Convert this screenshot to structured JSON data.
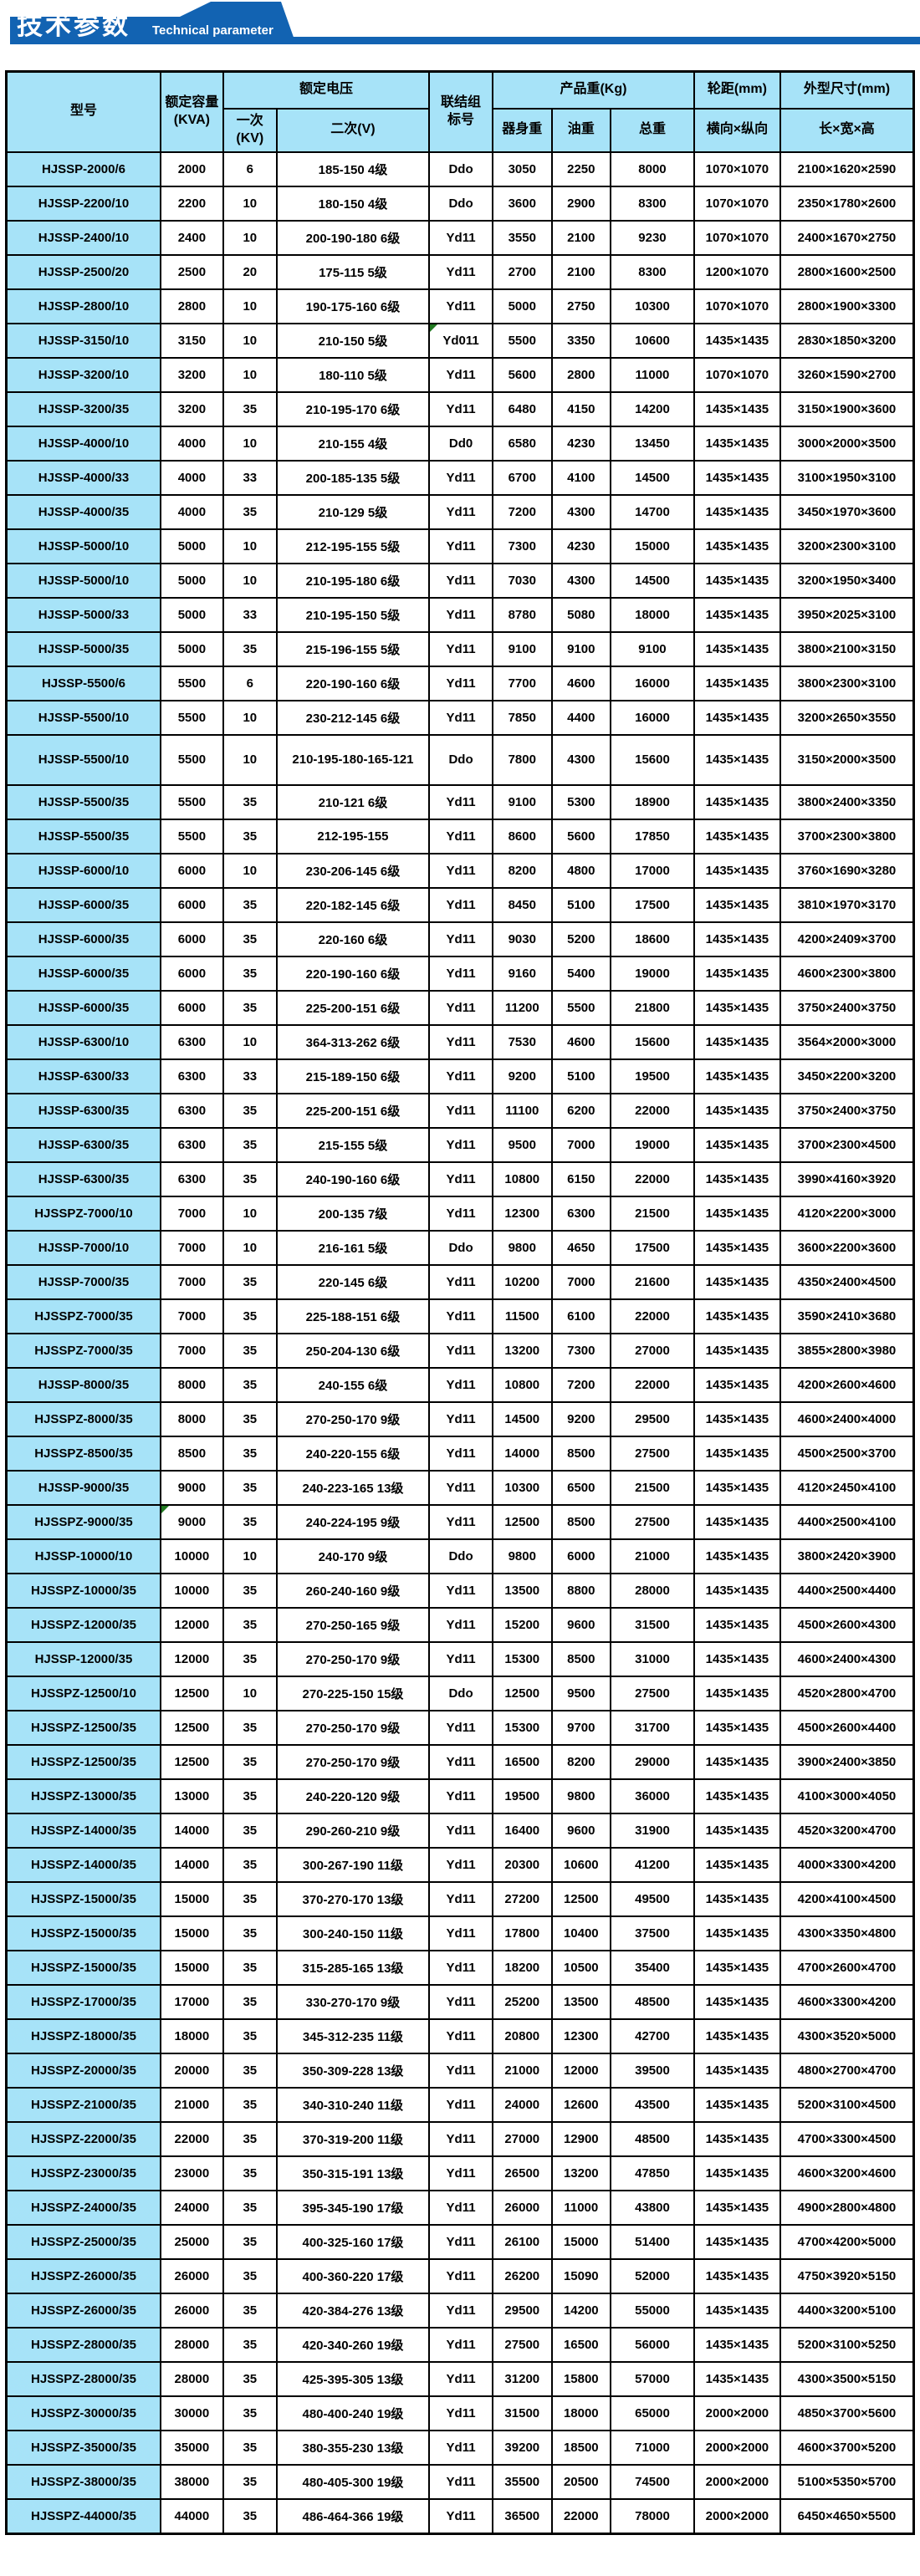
{
  "banner": {
    "title_zh": "技术参数",
    "title_en": "Technical parameter"
  },
  "colors": {
    "banner_blue": "#1263b2",
    "cell_blue": "#a7e3f8",
    "border_black": "#000000",
    "marker_green": "#217a21",
    "text_white": "#ffffff",
    "text_black": "#000000"
  },
  "table": {
    "headers": {
      "model": "型号",
      "capacity": "额定容量\n(KVA)",
      "rated_voltage": "额定电压",
      "primary": "一次\n(KV)",
      "secondary": "二次(V)",
      "vector_group": "联结组\n标号",
      "product_weight": "产品重(Kg)",
      "body_weight": "器身重",
      "oil_weight": "油重",
      "total_weight": "总重",
      "wheel_track": "轮距(mm)",
      "transverse_longitudinal": "横向×纵向",
      "dimensions": "外型尺寸(mm)",
      "length_width_height": "长×宽×高"
    },
    "tall_rows": [
      17
    ],
    "green_marker_cells": [
      {
        "row": 5,
        "col": 4
      },
      {
        "row": 39,
        "col": 1
      }
    ],
    "rows": [
      [
        "HJSSP-2000/6",
        "2000",
        "6",
        "185-150 4级",
        "Ddo",
        "3050",
        "2250",
        "8000",
        "1070×1070",
        "2100×1620×2590"
      ],
      [
        "HJSSP-2200/10",
        "2200",
        "10",
        "180-150 4级",
        "Ddo",
        "3600",
        "2900",
        "8300",
        "1070×1070",
        "2350×1780×2600"
      ],
      [
        "HJSSP-2400/10",
        "2400",
        "10",
        "200-190-180 6级",
        "Yd11",
        "3550",
        "2100",
        "9230",
        "1070×1070",
        "2400×1670×2750"
      ],
      [
        "HJSSP-2500/20",
        "2500",
        "20",
        "175-115 5级",
        "Yd11",
        "2700",
        "2100",
        "8300",
        "1200×1070",
        "2800×1600×2500"
      ],
      [
        "HJSSP-2800/10",
        "2800",
        "10",
        "190-175-160 6级",
        "Yd11",
        "5000",
        "2750",
        "10300",
        "1070×1070",
        "2800×1900×3300"
      ],
      [
        "HJSSP-3150/10",
        "3150",
        "10",
        "210-150 5级",
        "Yd011",
        "5500",
        "3350",
        "10600",
        "1435×1435",
        "2830×1850×3200"
      ],
      [
        "HJSSP-3200/10",
        "3200",
        "10",
        "180-110 5级",
        "Yd11",
        "5600",
        "2800",
        "11000",
        "1070×1070",
        "3260×1590×2700"
      ],
      [
        "HJSSP-3200/35",
        "3200",
        "35",
        "210-195-170 6级",
        "Yd11",
        "6480",
        "4150",
        "14200",
        "1435×1435",
        "3150×1900×3600"
      ],
      [
        "HJSSP-4000/10",
        "4000",
        "10",
        "210-155 4级",
        "Dd0",
        "6580",
        "4230",
        "13450",
        "1435×1435",
        "3000×2000×3500"
      ],
      [
        "HJSSP-4000/33",
        "4000",
        "33",
        "200-185-135 5级",
        "Yd11",
        "6700",
        "4100",
        "14500",
        "1435×1435",
        "3100×1950×3100"
      ],
      [
        "HJSSP-4000/35",
        "4000",
        "35",
        "210-129 5级",
        "Yd11",
        "7200",
        "4300",
        "14700",
        "1435×1435",
        "3450×1970×3600"
      ],
      [
        "HJSSP-5000/10",
        "5000",
        "10",
        "212-195-155 5级",
        "Yd11",
        "7300",
        "4230",
        "15000",
        "1435×1435",
        "3200×2300×3100"
      ],
      [
        "HJSSP-5000/10",
        "5000",
        "10",
        "210-195-180 6级",
        "Yd11",
        "7030",
        "4300",
        "14500",
        "1435×1435",
        "3200×1950×3400"
      ],
      [
        "HJSSP-5000/33",
        "5000",
        "33",
        "210-195-150 5级",
        "Yd11",
        "8780",
        "5080",
        "18000",
        "1435×1435",
        "3950×2025×3100"
      ],
      [
        "HJSSP-5000/35",
        "5000",
        "35",
        "215-196-155 5级",
        "Yd11",
        "9100",
        "9100",
        "9100",
        "1435×1435",
        "3800×2100×3150"
      ],
      [
        "HJSSP-5500/6",
        "5500",
        "6",
        "220-190-160 6级",
        "Yd11",
        "7700",
        "4600",
        "16000",
        "1435×1435",
        "3800×2300×3100"
      ],
      [
        "HJSSP-5500/10",
        "5500",
        "10",
        "230-212-145 6级",
        "Yd11",
        "7850",
        "4400",
        "16000",
        "1435×1435",
        "3200×2650×3550"
      ],
      [
        "HJSSP-5500/10",
        "5500",
        "10",
        "210-195-180-165-121",
        "Ddo",
        "7800",
        "4300",
        "15600",
        "1435×1435",
        "3150×2000×3500"
      ],
      [
        "HJSSP-5500/35",
        "5500",
        "35",
        "210-121 6级",
        "Yd11",
        "9100",
        "5300",
        "18900",
        "1435×1435",
        "3800×2400×3350"
      ],
      [
        "HJSSP-5500/35",
        "5500",
        "35",
        "212-195-155",
        "Yd11",
        "8600",
        "5600",
        "17850",
        "1435×1435",
        "3700×2300×3800"
      ],
      [
        "HJSSP-6000/10",
        "6000",
        "10",
        "230-206-145 6级",
        "Yd11",
        "8200",
        "4800",
        "17000",
        "1435×1435",
        "3760×1690×3280"
      ],
      [
        "HJSSP-6000/35",
        "6000",
        "35",
        "220-182-145 6级",
        "Yd11",
        "8450",
        "5100",
        "17500",
        "1435×1435",
        "3810×1970×3170"
      ],
      [
        "HJSSP-6000/35",
        "6000",
        "35",
        "220-160 6级",
        "Yd11",
        "9030",
        "5200",
        "18600",
        "1435×1435",
        "4200×2409×3700"
      ],
      [
        "HJSSP-6000/35",
        "6000",
        "35",
        "220-190-160 6级",
        "Yd11",
        "9160",
        "5400",
        "19000",
        "1435×1435",
        "4600×2300×3800"
      ],
      [
        "HJSSP-6000/35",
        "6000",
        "35",
        "225-200-151 6级",
        "Yd11",
        "11200",
        "5500",
        "21800",
        "1435×1435",
        "3750×2400×3750"
      ],
      [
        "HJSSP-6300/10",
        "6300",
        "10",
        "364-313-262 6级",
        "Yd11",
        "7530",
        "4600",
        "15600",
        "1435×1435",
        "3564×2000×3000"
      ],
      [
        "HJSSP-6300/33",
        "6300",
        "33",
        "215-189-150 6级",
        "Yd11",
        "9200",
        "5100",
        "19500",
        "1435×1435",
        "3450×2200×3200"
      ],
      [
        "HJSSP-6300/35",
        "6300",
        "35",
        "225-200-151 6级",
        "Yd11",
        "11100",
        "6200",
        "22000",
        "1435×1435",
        "3750×2400×3750"
      ],
      [
        "HJSSP-6300/35",
        "6300",
        "35",
        "215-155 5级",
        "Yd11",
        "9500",
        "7000",
        "19000",
        "1435×1435",
        "3700×2300×4500"
      ],
      [
        "HJSSP-6300/35",
        "6300",
        "35",
        "240-190-160 6级",
        "Yd11",
        "10800",
        "6150",
        "22000",
        "1435×1435",
        "3990×4160×3920"
      ],
      [
        "HJSSPZ-7000/10",
        "7000",
        "10",
        "200-135 7级",
        "Yd11",
        "12300",
        "6300",
        "21500",
        "1435×1435",
        "4120×2200×3000"
      ],
      [
        "HJSSP-7000/10",
        "7000",
        "10",
        "216-161 5级",
        "Ddo",
        "9800",
        "4650",
        "17500",
        "1435×1435",
        "3600×2200×3600"
      ],
      [
        "HJSSP-7000/35",
        "7000",
        "35",
        "220-145 6级",
        "Yd11",
        "10200",
        "7000",
        "21600",
        "1435×1435",
        "4350×2400×4500"
      ],
      [
        "HJSSPZ-7000/35",
        "7000",
        "35",
        "225-188-151 6级",
        "Yd11",
        "11500",
        "6100",
        "22000",
        "1435×1435",
        "3590×2410×3680"
      ],
      [
        "HJSSPZ-7000/35",
        "7000",
        "35",
        "250-204-130 6级",
        "Yd11",
        "13200",
        "7300",
        "27000",
        "1435×1435",
        "3855×2800×3980"
      ],
      [
        "HJSSP-8000/35",
        "8000",
        "35",
        "240-155 6级",
        "Yd11",
        "10800",
        "7200",
        "22000",
        "1435×1435",
        "4200×2600×4600"
      ],
      [
        "HJSSPZ-8000/35",
        "8000",
        "35",
        "270-250-170 9级",
        "Yd11",
        "14500",
        "9200",
        "29500",
        "1435×1435",
        "4600×2400×4000"
      ],
      [
        "HJSSPZ-8500/35",
        "8500",
        "35",
        "240-220-155 6级",
        "Yd11",
        "14000",
        "8500",
        "27500",
        "1435×1435",
        "4500×2500×3700"
      ],
      [
        "HJSSP-9000/35",
        "9000",
        "35",
        "240-223-165 13级",
        "Yd11",
        "10300",
        "6500",
        "21500",
        "1435×1435",
        "4120×2450×4100"
      ],
      [
        "HJSSPZ-9000/35",
        "9000",
        "35",
        "240-224-195 9级",
        "Yd11",
        "12500",
        "8500",
        "27500",
        "1435×1435",
        "4400×2500×4100"
      ],
      [
        "HJSSP-10000/10",
        "10000",
        "10",
        "240-170 9级",
        "Ddo",
        "9800",
        "6000",
        "21000",
        "1435×1435",
        "3800×2420×3900"
      ],
      [
        "HJSSPZ-10000/35",
        "10000",
        "35",
        "260-240-160 9级",
        "Yd11",
        "13500",
        "8800",
        "28000",
        "1435×1435",
        "4400×2500×4400"
      ],
      [
        "HJSSPZ-12000/35",
        "12000",
        "35",
        "270-250-165 9级",
        "Yd11",
        "15200",
        "9600",
        "31500",
        "1435×1435",
        "4500×2600×4300"
      ],
      [
        "HJSSP-12000/35",
        "12000",
        "35",
        "270-250-170 9级",
        "Yd11",
        "15300",
        "8500",
        "31000",
        "1435×1435",
        "4600×2400×4300"
      ],
      [
        "HJSSPZ-12500/10",
        "12500",
        "10",
        "270-225-150 15级",
        "Ddo",
        "12500",
        "9500",
        "27500",
        "1435×1435",
        "4520×2800×4700"
      ],
      [
        "HJSSPZ-12500/35",
        "12500",
        "35",
        "270-250-170 9级",
        "Yd11",
        "15300",
        "9700",
        "31700",
        "1435×1435",
        "4500×2600×4400"
      ],
      [
        "HJSSPZ-12500/35",
        "12500",
        "35",
        "270-250-170 9级",
        "Yd11",
        "16500",
        "8200",
        "29000",
        "1435×1435",
        "3900×2400×3850"
      ],
      [
        "HJSSPZ-13000/35",
        "13000",
        "35",
        "240-220-120 9级",
        "Yd11",
        "19500",
        "9800",
        "36000",
        "1435×1435",
        "4100×3000×4050"
      ],
      [
        "HJSSPZ-14000/35",
        "14000",
        "35",
        "290-260-210 9级",
        "Yd11",
        "16400",
        "9600",
        "31900",
        "1435×1435",
        "4520×3200×4700"
      ],
      [
        "HJSSPZ-14000/35",
        "14000",
        "35",
        "300-267-190 11级",
        "Yd11",
        "20300",
        "10600",
        "41200",
        "1435×1435",
        "4000×3300×4200"
      ],
      [
        "HJSSPZ-15000/35",
        "15000",
        "35",
        "370-270-170 13级",
        "Yd11",
        "27200",
        "12500",
        "49500",
        "1435×1435",
        "4200×4100×4500"
      ],
      [
        "HJSSPZ-15000/35",
        "15000",
        "35",
        "300-240-150 11级",
        "Yd11",
        "17800",
        "10400",
        "37500",
        "1435×1435",
        "4300×3350×4800"
      ],
      [
        "HJSSPZ-15000/35",
        "15000",
        "35",
        "315-285-165 13级",
        "Yd11",
        "18200",
        "10500",
        "35400",
        "1435×1435",
        "4700×2600×4700"
      ],
      [
        "HJSSPZ-17000/35",
        "17000",
        "35",
        "330-270-170 9级",
        "Yd11",
        "25200",
        "13500",
        "48500",
        "1435×1435",
        "4600×3300×4200"
      ],
      [
        "HJSSPZ-18000/35",
        "18000",
        "35",
        "345-312-235 11级",
        "Yd11",
        "20800",
        "12300",
        "42700",
        "1435×1435",
        "4300×3520×5000"
      ],
      [
        "HJSSPZ-20000/35",
        "20000",
        "35",
        "350-309-228 13级",
        "Yd11",
        "21000",
        "12000",
        "39500",
        "1435×1435",
        "4800×2700×4700"
      ],
      [
        "HJSSPZ-21000/35",
        "21000",
        "35",
        "340-310-240 11级",
        "Yd11",
        "24000",
        "12600",
        "43500",
        "1435×1435",
        "5200×3100×4500"
      ],
      [
        "HJSSPZ-22000/35",
        "22000",
        "35",
        "370-319-200 11级",
        "Yd11",
        "27000",
        "12900",
        "48500",
        "1435×1435",
        "4700×3300×4500"
      ],
      [
        "HJSSPZ-23000/35",
        "23000",
        "35",
        "350-315-191 13级",
        "Yd11",
        "26500",
        "13200",
        "47850",
        "1435×1435",
        "4600×3200×4600"
      ],
      [
        "HJSSPZ-24000/35",
        "24000",
        "35",
        "395-345-190 17级",
        "Yd11",
        "26000",
        "11000",
        "43800",
        "1435×1435",
        "4900×2800×4800"
      ],
      [
        "HJSSPZ-25000/35",
        "25000",
        "35",
        "400-325-160 17级",
        "Yd11",
        "26100",
        "15000",
        "51400",
        "1435×1435",
        "4700×4200×5000"
      ],
      [
        "HJSSPZ-26000/35",
        "26000",
        "35",
        "400-360-220 17级",
        "Yd11",
        "26200",
        "15090",
        "52000",
        "1435×1435",
        "4750×3920×5150"
      ],
      [
        "HJSSPZ-26000/35",
        "26000",
        "35",
        "420-384-276 13级",
        "Yd11",
        "29500",
        "14200",
        "55000",
        "1435×1435",
        "4400×3200×5100"
      ],
      [
        "HJSSPZ-28000/35",
        "28000",
        "35",
        "420-340-260 19级",
        "Yd11",
        "27500",
        "16500",
        "56000",
        "1435×1435",
        "5200×3100×5250"
      ],
      [
        "HJSSPZ-28000/35",
        "28000",
        "35",
        "425-395-305 13级",
        "Yd11",
        "31200",
        "15800",
        "57000",
        "1435×1435",
        "4300×3500×5150"
      ],
      [
        "HJSSPZ-30000/35",
        "30000",
        "35",
        "480-400-240 19级",
        "Yd11",
        "31500",
        "18000",
        "65000",
        "2000×2000",
        "4850×3700×5600"
      ],
      [
        "HJSSPZ-35000/35",
        "35000",
        "35",
        "380-355-230 13级",
        "Yd11",
        "39200",
        "18500",
        "71000",
        "2000×2000",
        "4600×3700×5200"
      ],
      [
        "HJSSPZ-38000/35",
        "38000",
        "35",
        "480-405-300 19级",
        "Yd11",
        "35500",
        "20500",
        "74500",
        "2000×2000",
        "5100×5350×5700"
      ],
      [
        "HJSSPZ-44000/35",
        "44000",
        "35",
        "486-464-366 19级",
        "Yd11",
        "36500",
        "22000",
        "78000",
        "2000×2000",
        "6450×4650×5500"
      ]
    ]
  }
}
